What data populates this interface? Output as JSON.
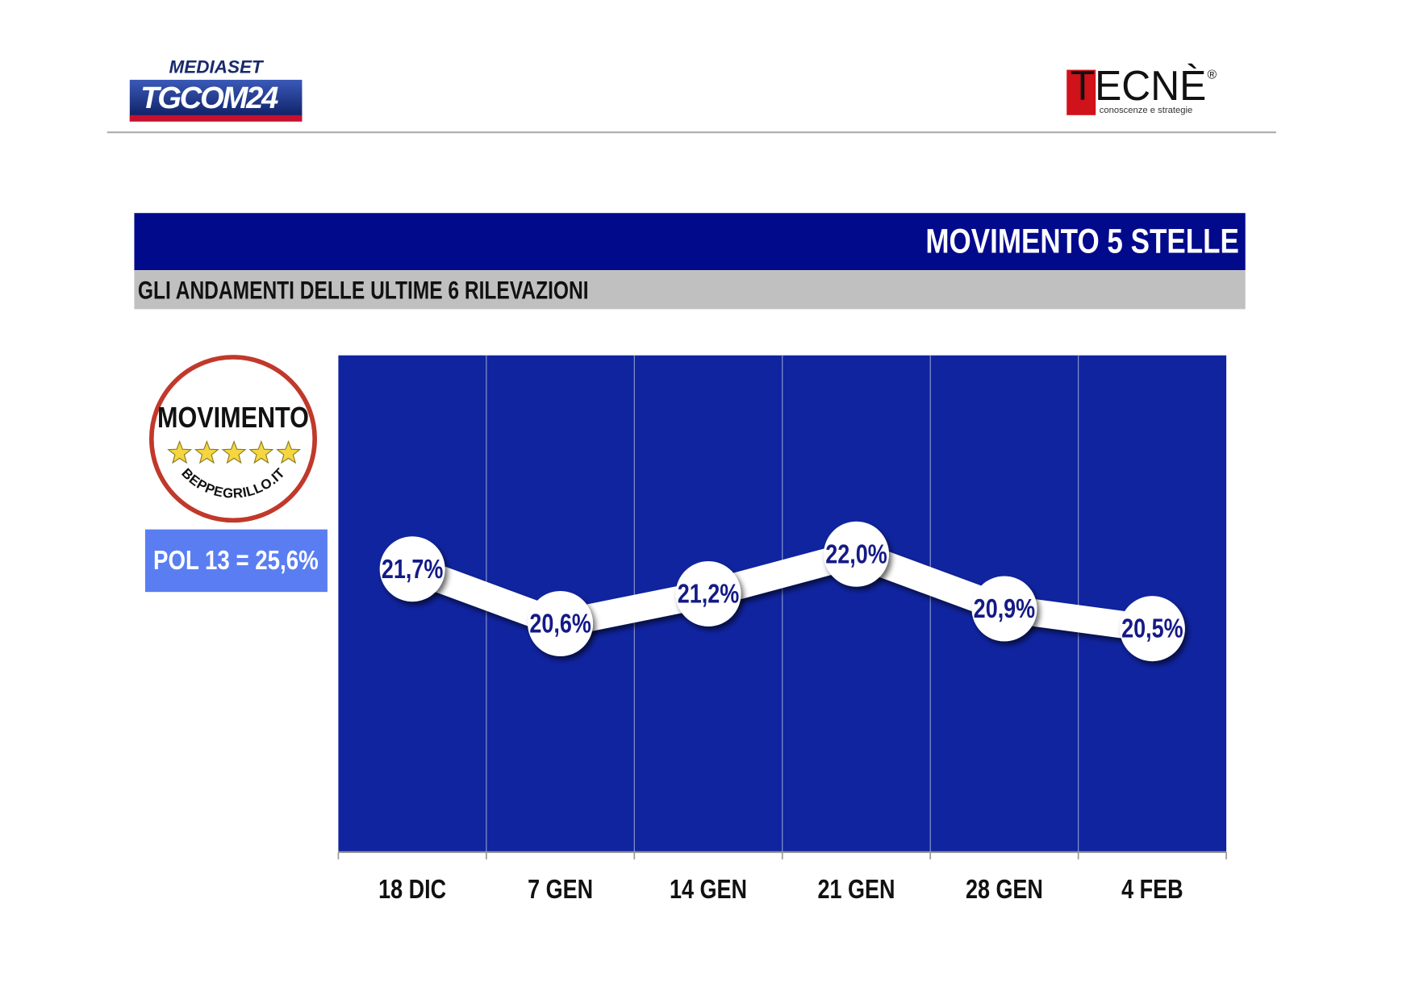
{
  "header": {
    "left_logo": {
      "top": "MEDIASET",
      "main": "TGCOM24"
    },
    "right_logo": {
      "main": "TECNÈ",
      "mark": "®",
      "tagline": "conoscenze e strategie"
    }
  },
  "party_logo": {
    "top": "MOVIMENTO",
    "bottom": "BEPPEGRILLO.IT"
  },
  "chart_data": {
    "type": "line",
    "title": "MOVIMENTO 5 STELLE",
    "subtitle": "GLI ANDAMENTI DELLE ULTIME 6 RILEVAZIONI",
    "annotation": "POL 13 = 25,6%",
    "categories": [
      "18 DIC",
      "7 GEN",
      "14 GEN",
      "21 GEN",
      "28 GEN",
      "4 FEB"
    ],
    "values": [
      21.7,
      20.6,
      21.2,
      22.0,
      20.9,
      20.5
    ],
    "value_labels": [
      "21,7%",
      "20,6%",
      "21,2%",
      "22,0%",
      "20,9%",
      "20,5%"
    ],
    "color": "#ffffff",
    "background": "#1024a0",
    "ylim": [
      16,
      26
    ]
  }
}
